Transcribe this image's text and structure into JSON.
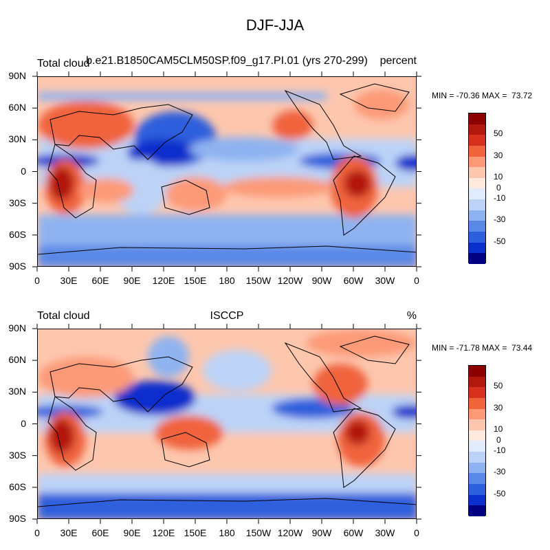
{
  "title": "DJF-JJA",
  "panels": [
    {
      "left_label": "Total cloud",
      "center_label": "b.e21.B1850CAM5CLM50SP.f09_g17.PI.01 (yrs 270-299)",
      "right_label": "percent",
      "minmax": "MIN = -70.36 MAX =  73.72"
    },
    {
      "left_label": "Total cloud",
      "center_label": "ISCCP",
      "right_label": "%",
      "minmax": "MIN = -71.78 MAX =  73.44"
    }
  ],
  "lat_labels": [
    "90N",
    "60N",
    "30N",
    "0",
    "30S",
    "60S",
    "90S"
  ],
  "lon_labels": [
    "0",
    "30E",
    "60E",
    "90E",
    "120E",
    "150E",
    "180",
    "150W",
    "120W",
    "90W",
    "60W",
    "30W",
    "0"
  ],
  "colorbar": {
    "labels": [
      "50",
      "30",
      "10",
      "0",
      "-10",
      "-30",
      "-50"
    ],
    "colors": [
      "#8b0000",
      "#b2180e",
      "#d7301f",
      "#f0643c",
      "#fc9a78",
      "#fdc7ae",
      "#feeade",
      "#e0ecfb",
      "#bcd3f7",
      "#8fb3f0",
      "#5a88e6",
      "#2d5fdc",
      "#0a2fcc",
      "#000080"
    ]
  }
}
